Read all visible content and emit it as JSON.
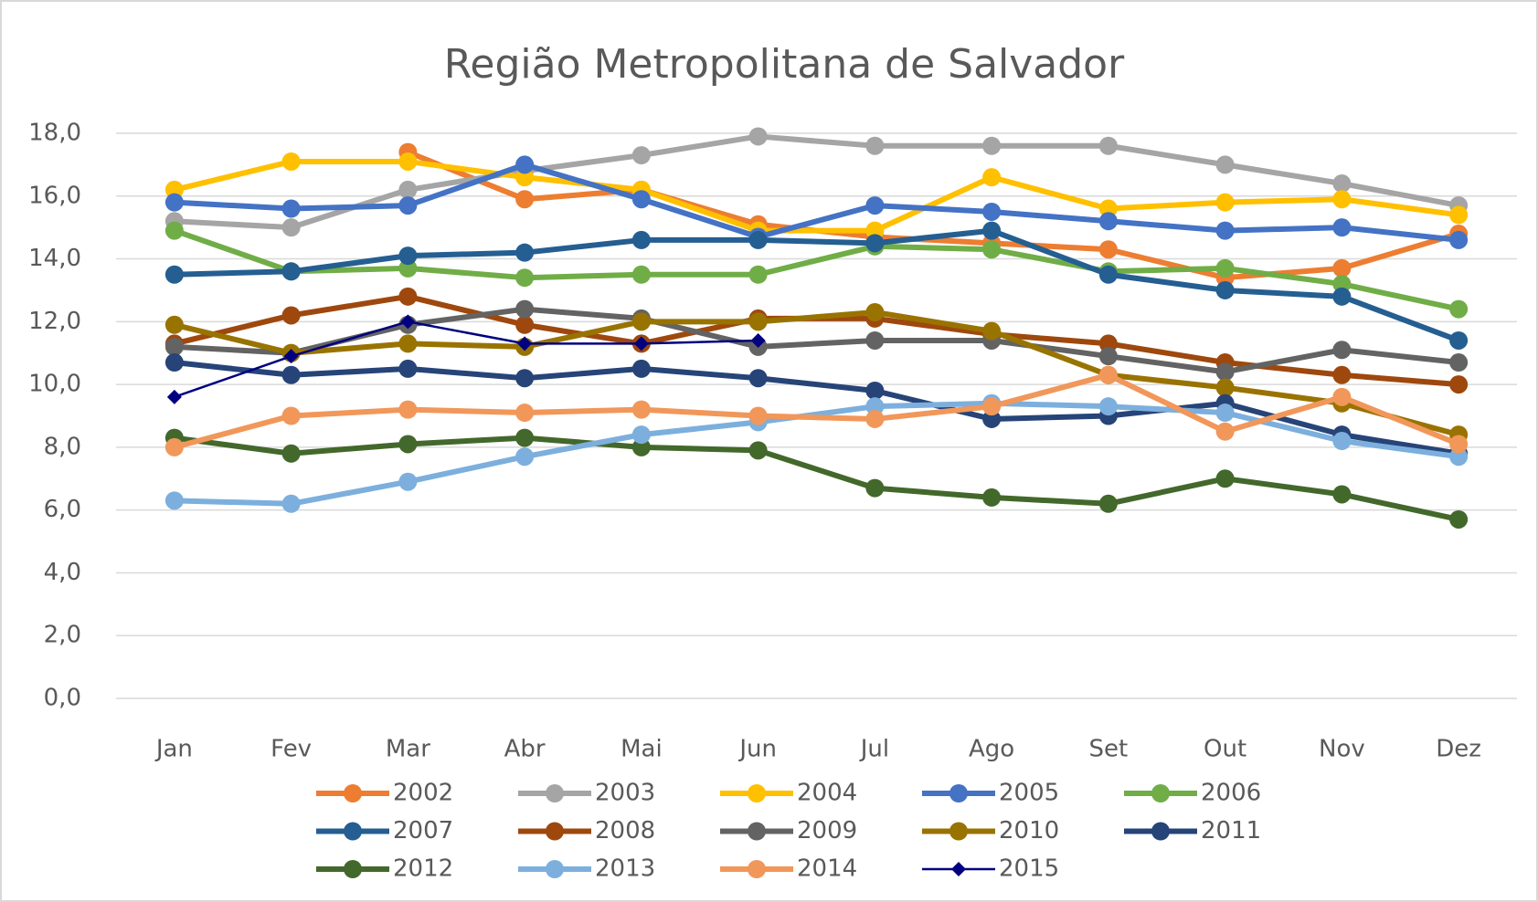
{
  "chart_data": {
    "type": "line",
    "title": "Região Metropolitana de Salvador",
    "categories": [
      "Jan",
      "Fev",
      "Mar",
      "Abr",
      "Mai",
      "Jun",
      "Jul",
      "Ago",
      "Set",
      "Out",
      "Nov",
      "Dez"
    ],
    "ylim": [
      0,
      18
    ],
    "yticks": [
      {
        "value": 0,
        "label": "0,0"
      },
      {
        "value": 2,
        "label": "2,0"
      },
      {
        "value": 4,
        "label": "4,0"
      },
      {
        "value": 6,
        "label": "6,0"
      },
      {
        "value": 8,
        "label": "8,0"
      },
      {
        "value": 10,
        "label": "10,0"
      },
      {
        "value": 12,
        "label": "12,0"
      },
      {
        "value": 14,
        "label": "14,0"
      },
      {
        "value": 16,
        "label": "16,0"
      },
      {
        "value": 18,
        "label": "18,0"
      }
    ],
    "grid": true,
    "series": [
      {
        "name": "2002",
        "color": "#ED7D31",
        "values": [
          null,
          null,
          17.4,
          15.9,
          16.2,
          15.1,
          14.7,
          14.5,
          14.3,
          13.4,
          13.7,
          14.8
        ]
      },
      {
        "name": "2003",
        "color": "#A5A5A5",
        "values": [
          15.2,
          15.0,
          16.2,
          16.8,
          17.3,
          17.9,
          17.6,
          17.6,
          17.6,
          17.0,
          16.4,
          15.7
        ]
      },
      {
        "name": "2004",
        "color": "#FFC000",
        "values": [
          16.2,
          17.1,
          17.1,
          16.6,
          16.2,
          14.9,
          14.9,
          16.6,
          15.6,
          15.8,
          15.9,
          15.4
        ]
      },
      {
        "name": "2005",
        "color": "#4472C4",
        "values": [
          15.8,
          15.6,
          15.7,
          17.0,
          15.9,
          14.7,
          15.7,
          15.5,
          15.2,
          14.9,
          15.0,
          14.6
        ]
      },
      {
        "name": "2006",
        "color": "#70AD47",
        "values": [
          14.9,
          13.6,
          13.7,
          13.4,
          13.5,
          13.5,
          14.4,
          14.3,
          13.6,
          13.7,
          13.2,
          12.4
        ]
      },
      {
        "name": "2007",
        "color": "#255E91",
        "values": [
          13.5,
          13.6,
          14.1,
          14.2,
          14.6,
          14.6,
          14.5,
          14.9,
          13.5,
          13.0,
          12.8,
          11.4
        ]
      },
      {
        "name": "2008",
        "color": "#9E480E",
        "values": [
          11.3,
          12.2,
          12.8,
          11.9,
          11.3,
          12.1,
          12.1,
          11.6,
          11.3,
          10.7,
          10.3,
          10.0
        ]
      },
      {
        "name": "2009",
        "color": "#636363",
        "values": [
          11.2,
          11.0,
          11.9,
          12.4,
          12.1,
          11.2,
          11.4,
          11.4,
          10.9,
          10.4,
          11.1,
          10.7
        ]
      },
      {
        "name": "2010",
        "color": "#997300",
        "values": [
          11.9,
          11.0,
          11.3,
          11.2,
          12.0,
          12.0,
          12.3,
          11.7,
          10.3,
          9.9,
          9.4,
          8.4
        ]
      },
      {
        "name": "2011",
        "color": "#264478",
        "values": [
          10.7,
          10.3,
          10.5,
          10.2,
          10.5,
          10.2,
          9.8,
          8.9,
          9.0,
          9.4,
          8.4,
          7.8
        ]
      },
      {
        "name": "2012",
        "color": "#43682B",
        "values": [
          8.3,
          7.8,
          8.1,
          8.3,
          8.0,
          7.9,
          6.7,
          6.4,
          6.2,
          7.0,
          6.5,
          5.7
        ]
      },
      {
        "name": "2013",
        "color": "#7CAFDD",
        "values": [
          6.3,
          6.2,
          6.9,
          7.7,
          8.4,
          8.8,
          9.3,
          9.4,
          9.3,
          9.1,
          8.2,
          7.7
        ]
      },
      {
        "name": "2014",
        "color": "#F1975A",
        "values": [
          8.0,
          9.0,
          9.2,
          9.1,
          9.2,
          9.0,
          8.9,
          9.3,
          10.3,
          8.5,
          9.6,
          8.1
        ]
      },
      {
        "name": "2015",
        "color": "#000080",
        "values": [
          9.6,
          10.9,
          12.0,
          11.3,
          11.3,
          11.4,
          null,
          null,
          null,
          null,
          null,
          null
        ]
      }
    ]
  }
}
